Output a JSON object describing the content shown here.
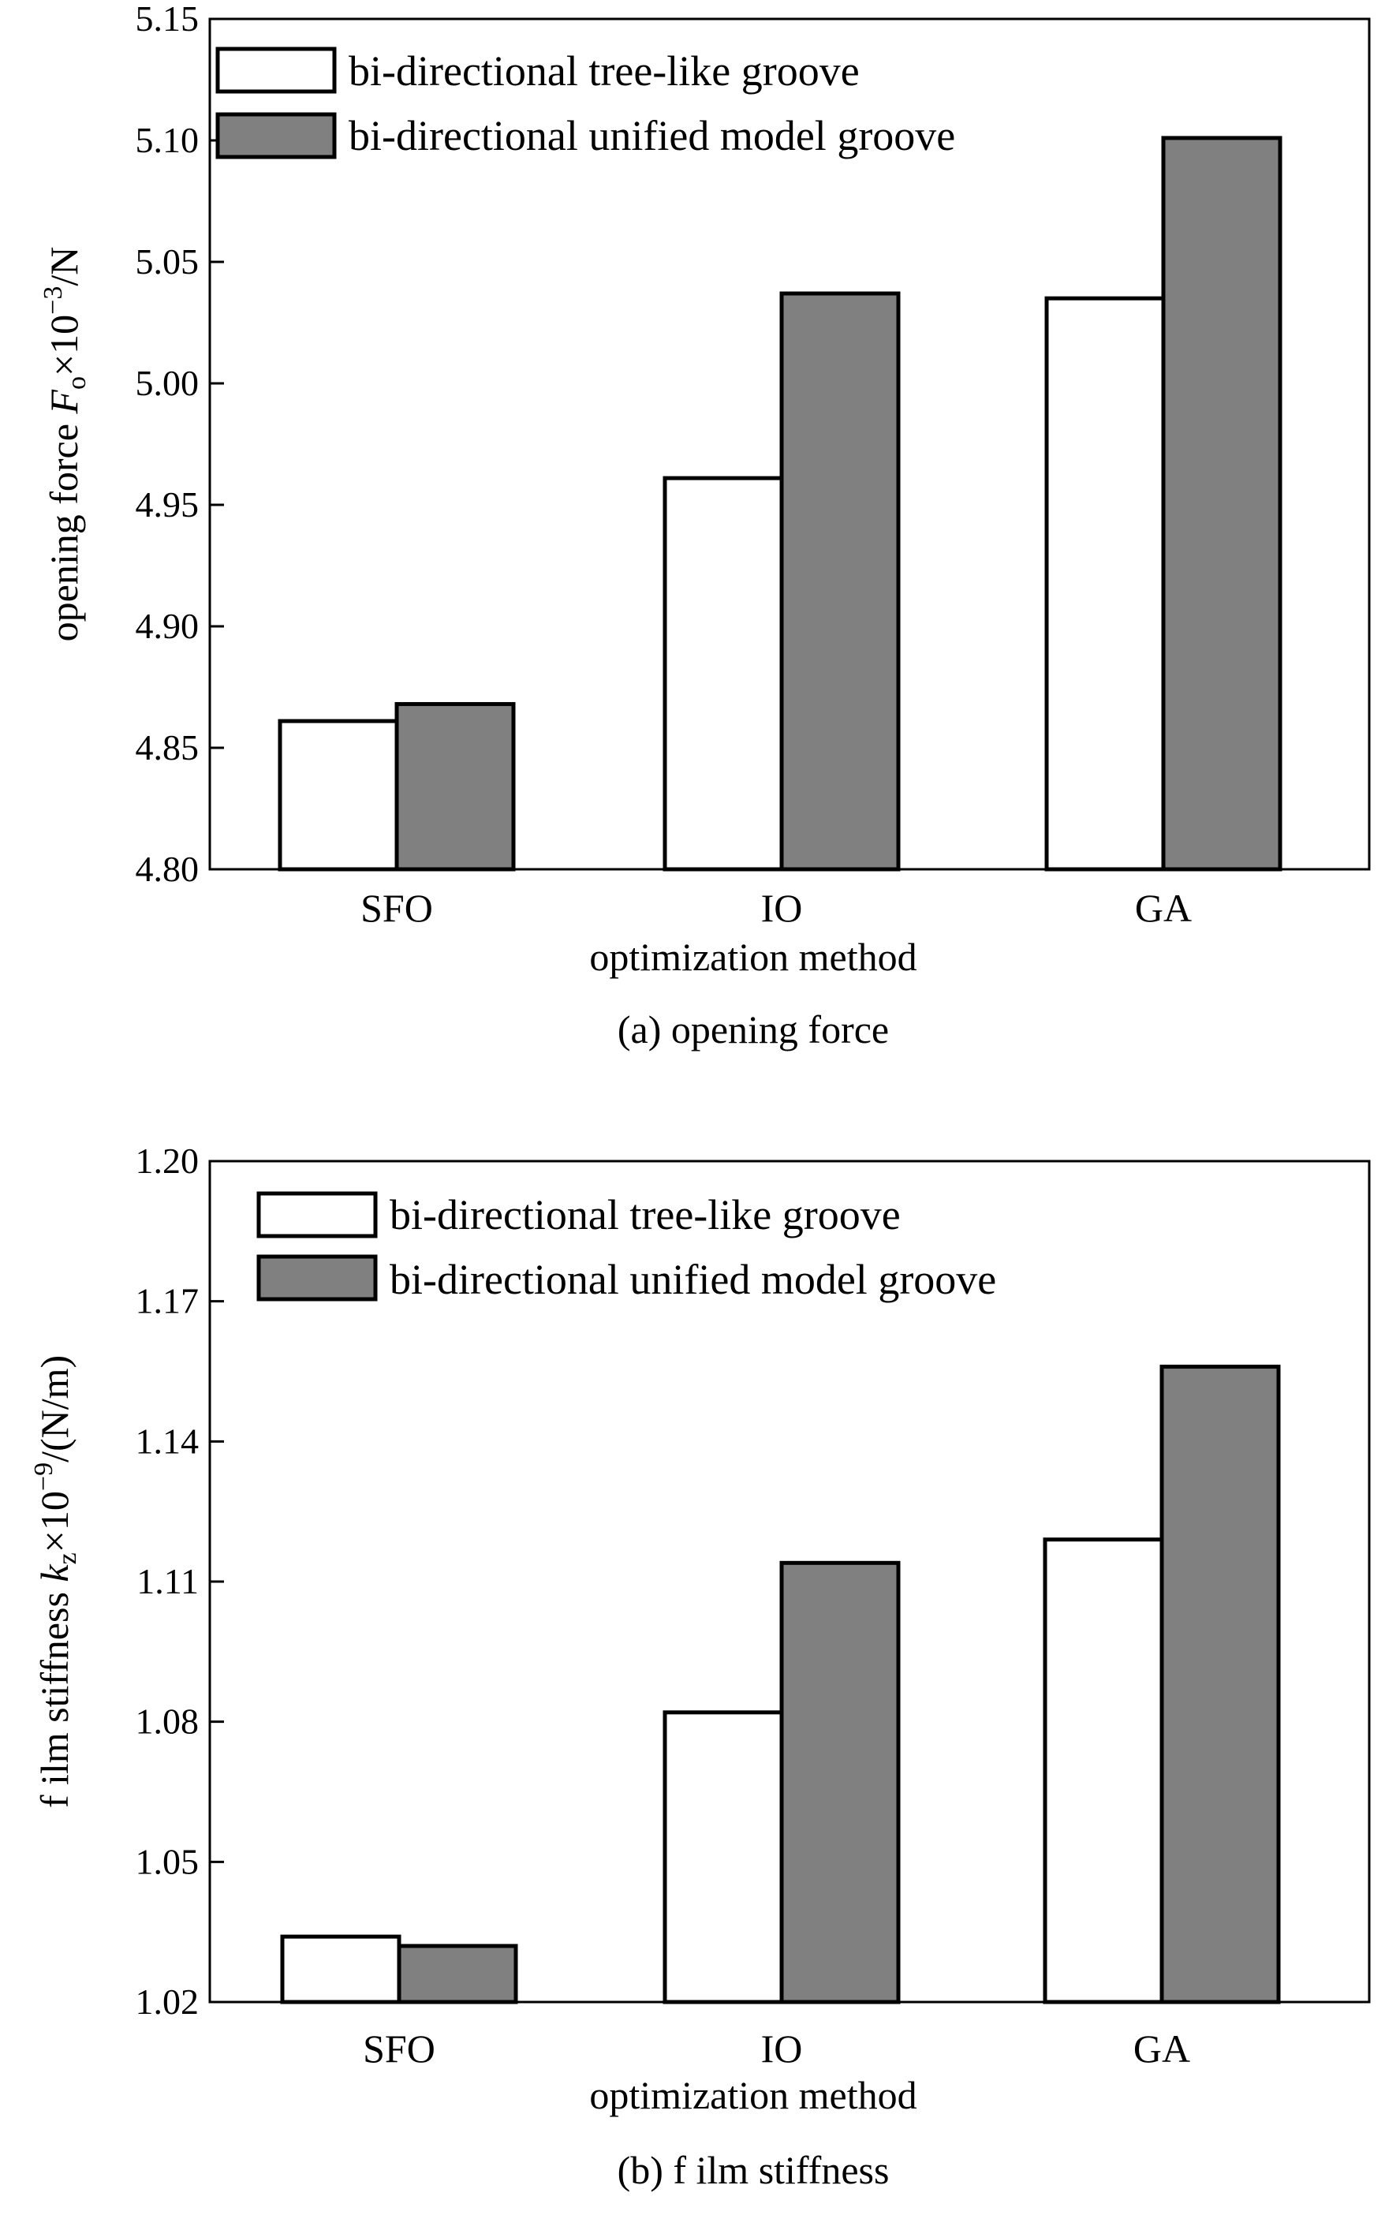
{
  "chart_data": [
    {
      "type": "bar",
      "caption": "(a) opening force",
      "xlabel": "optimization method",
      "ylabel": {
        "prefix": "opening force ",
        "symbol": "F",
        "subscript": "o",
        "times": "×10",
        "exponent": "−3",
        "unit": "/N"
      },
      "categories": [
        "SFO",
        "IO",
        "GA"
      ],
      "ylim": [
        4.8,
        5.15
      ],
      "yticks": [
        "4.80",
        "4.85",
        "4.90",
        "4.95",
        "5.00",
        "5.05",
        "5.10",
        "5.15"
      ],
      "legend_position": "top-left",
      "series": [
        {
          "name": "bi-directional tree-like groove",
          "color": "#ffffff",
          "values": [
            4.861,
            4.961,
            5.035
          ]
        },
        {
          "name": "bi-directional unified model groove",
          "color": "#808080",
          "values": [
            4.868,
            5.037,
            5.101
          ]
        }
      ]
    },
    {
      "type": "bar",
      "caption": "(b) f ilm stiffness",
      "xlabel": "optimization method",
      "ylabel": {
        "prefix": "f ilm stiffness ",
        "symbol": "k",
        "subscript": "z",
        "times": "×10",
        "exponent": "−9",
        "unit": "/(N/m)"
      },
      "categories": [
        "SFO",
        "IO",
        "GA"
      ],
      "ylim": [
        1.02,
        1.2
      ],
      "yticks": [
        "1.02",
        "1.05",
        "1.08",
        "1.11",
        "1.14",
        "1.17",
        "1.20"
      ],
      "legend_position": "top-left",
      "series": [
        {
          "name": "bi-directional tree-like groove",
          "color": "#ffffff",
          "values": [
            1.034,
            1.082,
            1.119
          ]
        },
        {
          "name": "bi-directional unified model groove",
          "color": "#808080",
          "values": [
            1.032,
            1.114,
            1.156
          ]
        }
      ]
    }
  ]
}
